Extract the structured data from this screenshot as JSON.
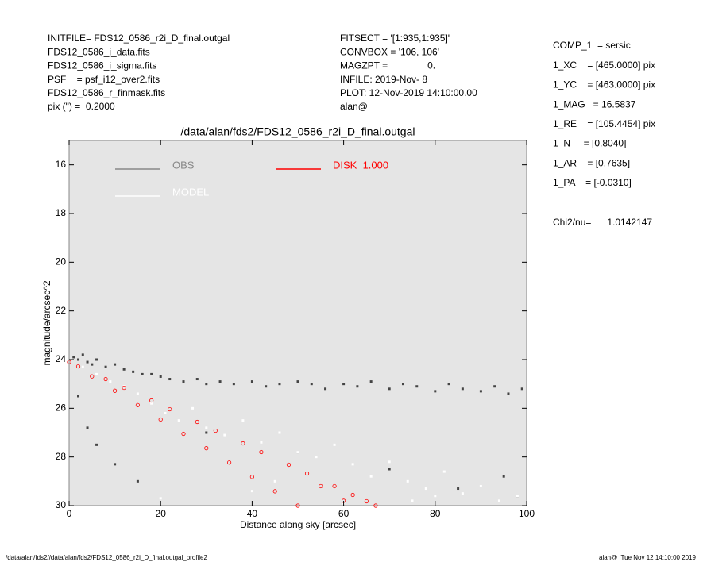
{
  "chart_data": {
    "type": "scatter",
    "title": "/data/alan/fds2/FDS12_0586_r2i_D_final.outgal",
    "x_label": "Distance along sky [arcsec]",
    "y_label": "magnitude/arcsec^2",
    "xlim": [
      0,
      100
    ],
    "ylim": [
      30,
      15
    ],
    "xticks": [
      0,
      20,
      40,
      60,
      80,
      100
    ],
    "yticks": [
      16,
      18,
      20,
      22,
      24,
      26,
      28,
      30
    ],
    "y_inverted": true,
    "background": "#e5e5e5",
    "series": [
      {
        "name": "OBS",
        "color": "#444444",
        "legend_color": "#888888",
        "x": [
          1,
          2,
          3,
          4,
          5,
          6,
          8,
          10,
          12,
          14,
          16,
          18,
          20,
          22,
          25,
          28,
          30,
          33,
          36,
          40,
          43,
          46,
          50,
          53,
          56,
          60,
          63,
          66,
          70,
          73,
          76,
          80,
          83,
          86,
          90,
          93,
          96,
          99,
          2,
          4,
          6,
          10,
          15,
          30,
          50,
          70,
          85,
          95,
          98
        ],
        "values": [
          23.9,
          24.0,
          23.8,
          24.1,
          24.2,
          24.0,
          24.3,
          24.2,
          24.4,
          24.5,
          24.6,
          24.6,
          24.7,
          24.8,
          24.9,
          24.8,
          25.0,
          24.9,
          25.0,
          24.9,
          25.1,
          25.0,
          24.9,
          25.0,
          25.2,
          25.0,
          25.1,
          24.9,
          25.2,
          25.0,
          25.1,
          25.3,
          25.0,
          25.2,
          25.3,
          25.1,
          25.4,
          25.2,
          25.5,
          26.8,
          27.5,
          28.3,
          29.0,
          27.0,
          27.8,
          28.5,
          29.3,
          28.8,
          29.6
        ]
      },
      {
        "name": "MODEL",
        "color": "#ffffff",
        "legend_color": "#ffffff",
        "x": [
          3,
          6,
          9,
          12,
          15,
          18,
          21,
          24,
          27,
          30,
          34,
          38,
          42,
          46,
          50,
          54,
          58,
          62,
          66,
          70,
          74,
          78,
          82,
          86,
          90,
          94,
          98,
          20,
          40,
          60,
          80,
          45,
          75
        ],
        "values": [
          24.3,
          24.6,
          24.9,
          25.1,
          25.4,
          25.8,
          26.2,
          26.5,
          26.0,
          26.8,
          27.1,
          26.5,
          27.4,
          27.0,
          27.8,
          28.0,
          27.5,
          28.3,
          28.8,
          28.2,
          29.0,
          29.3,
          28.6,
          29.5,
          29.2,
          29.8,
          29.6,
          29.7,
          29.4,
          29.9,
          29.6,
          29.0,
          29.8
        ]
      },
      {
        "name": "DISK  1.000",
        "color": "#ff0000",
        "legend_color": "#ff0000",
        "x": [
          0,
          2,
          5,
          8,
          10,
          12,
          15,
          18,
          20,
          22,
          25,
          28,
          30,
          32,
          35,
          38,
          40,
          42,
          45,
          48,
          50,
          52,
          55,
          58,
          60,
          62,
          65,
          67
        ],
        "values": [
          24.1,
          24.28,
          24.69,
          24.8,
          25.28,
          25.16,
          25.87,
          25.68,
          26.46,
          26.04,
          27.05,
          26.56,
          27.64,
          26.92,
          28.23,
          27.44,
          28.82,
          27.8,
          29.41,
          28.32,
          30.0,
          28.68,
          29.2,
          29.2,
          29.8,
          29.56,
          29.82,
          30.0
        ]
      }
    ],
    "annotations": {
      "left": [
        "INITFILE= FDS12_0586_r2i_D_final.outgal",
        "FDS12_0586_i_data.fits",
        "FDS12_0586_i_sigma.fits",
        "PSF    = psf_i12_over2.fits",
        "FDS12_0586_r_finmask.fits",
        "pix (\") =  0.2000"
      ],
      "middle": [
        "FITSECT = '[1:935,1:935]'",
        "CONVBOX = '106, 106'",
        "MAGZPT =               0.",
        "INFILE: 2019-Nov- 8",
        "PLOT: 12-Nov-2019 14:10:00.00",
        "alan@"
      ],
      "right": [
        "COMP_1  = sersic",
        "1_XC    = [465.0000] pix",
        "1_YC    = [463.0000] pix",
        "1_MAG   = 16.5837",
        "1_RE    = [105.4454] pix",
        "1_N     = [0.8040]",
        "1_AR    = [0.7635]",
        "1_PA    = [-0.0310]"
      ],
      "chi2": "Chi2/nu=      1.0142147",
      "footer_left": "/data/alan/fds2//data/alan/fds2/FDS12_0586_r2i_D_final.outgal_profile2",
      "footer_right": "alan@  Tue Nov 12 14:10:00 2019"
    }
  }
}
